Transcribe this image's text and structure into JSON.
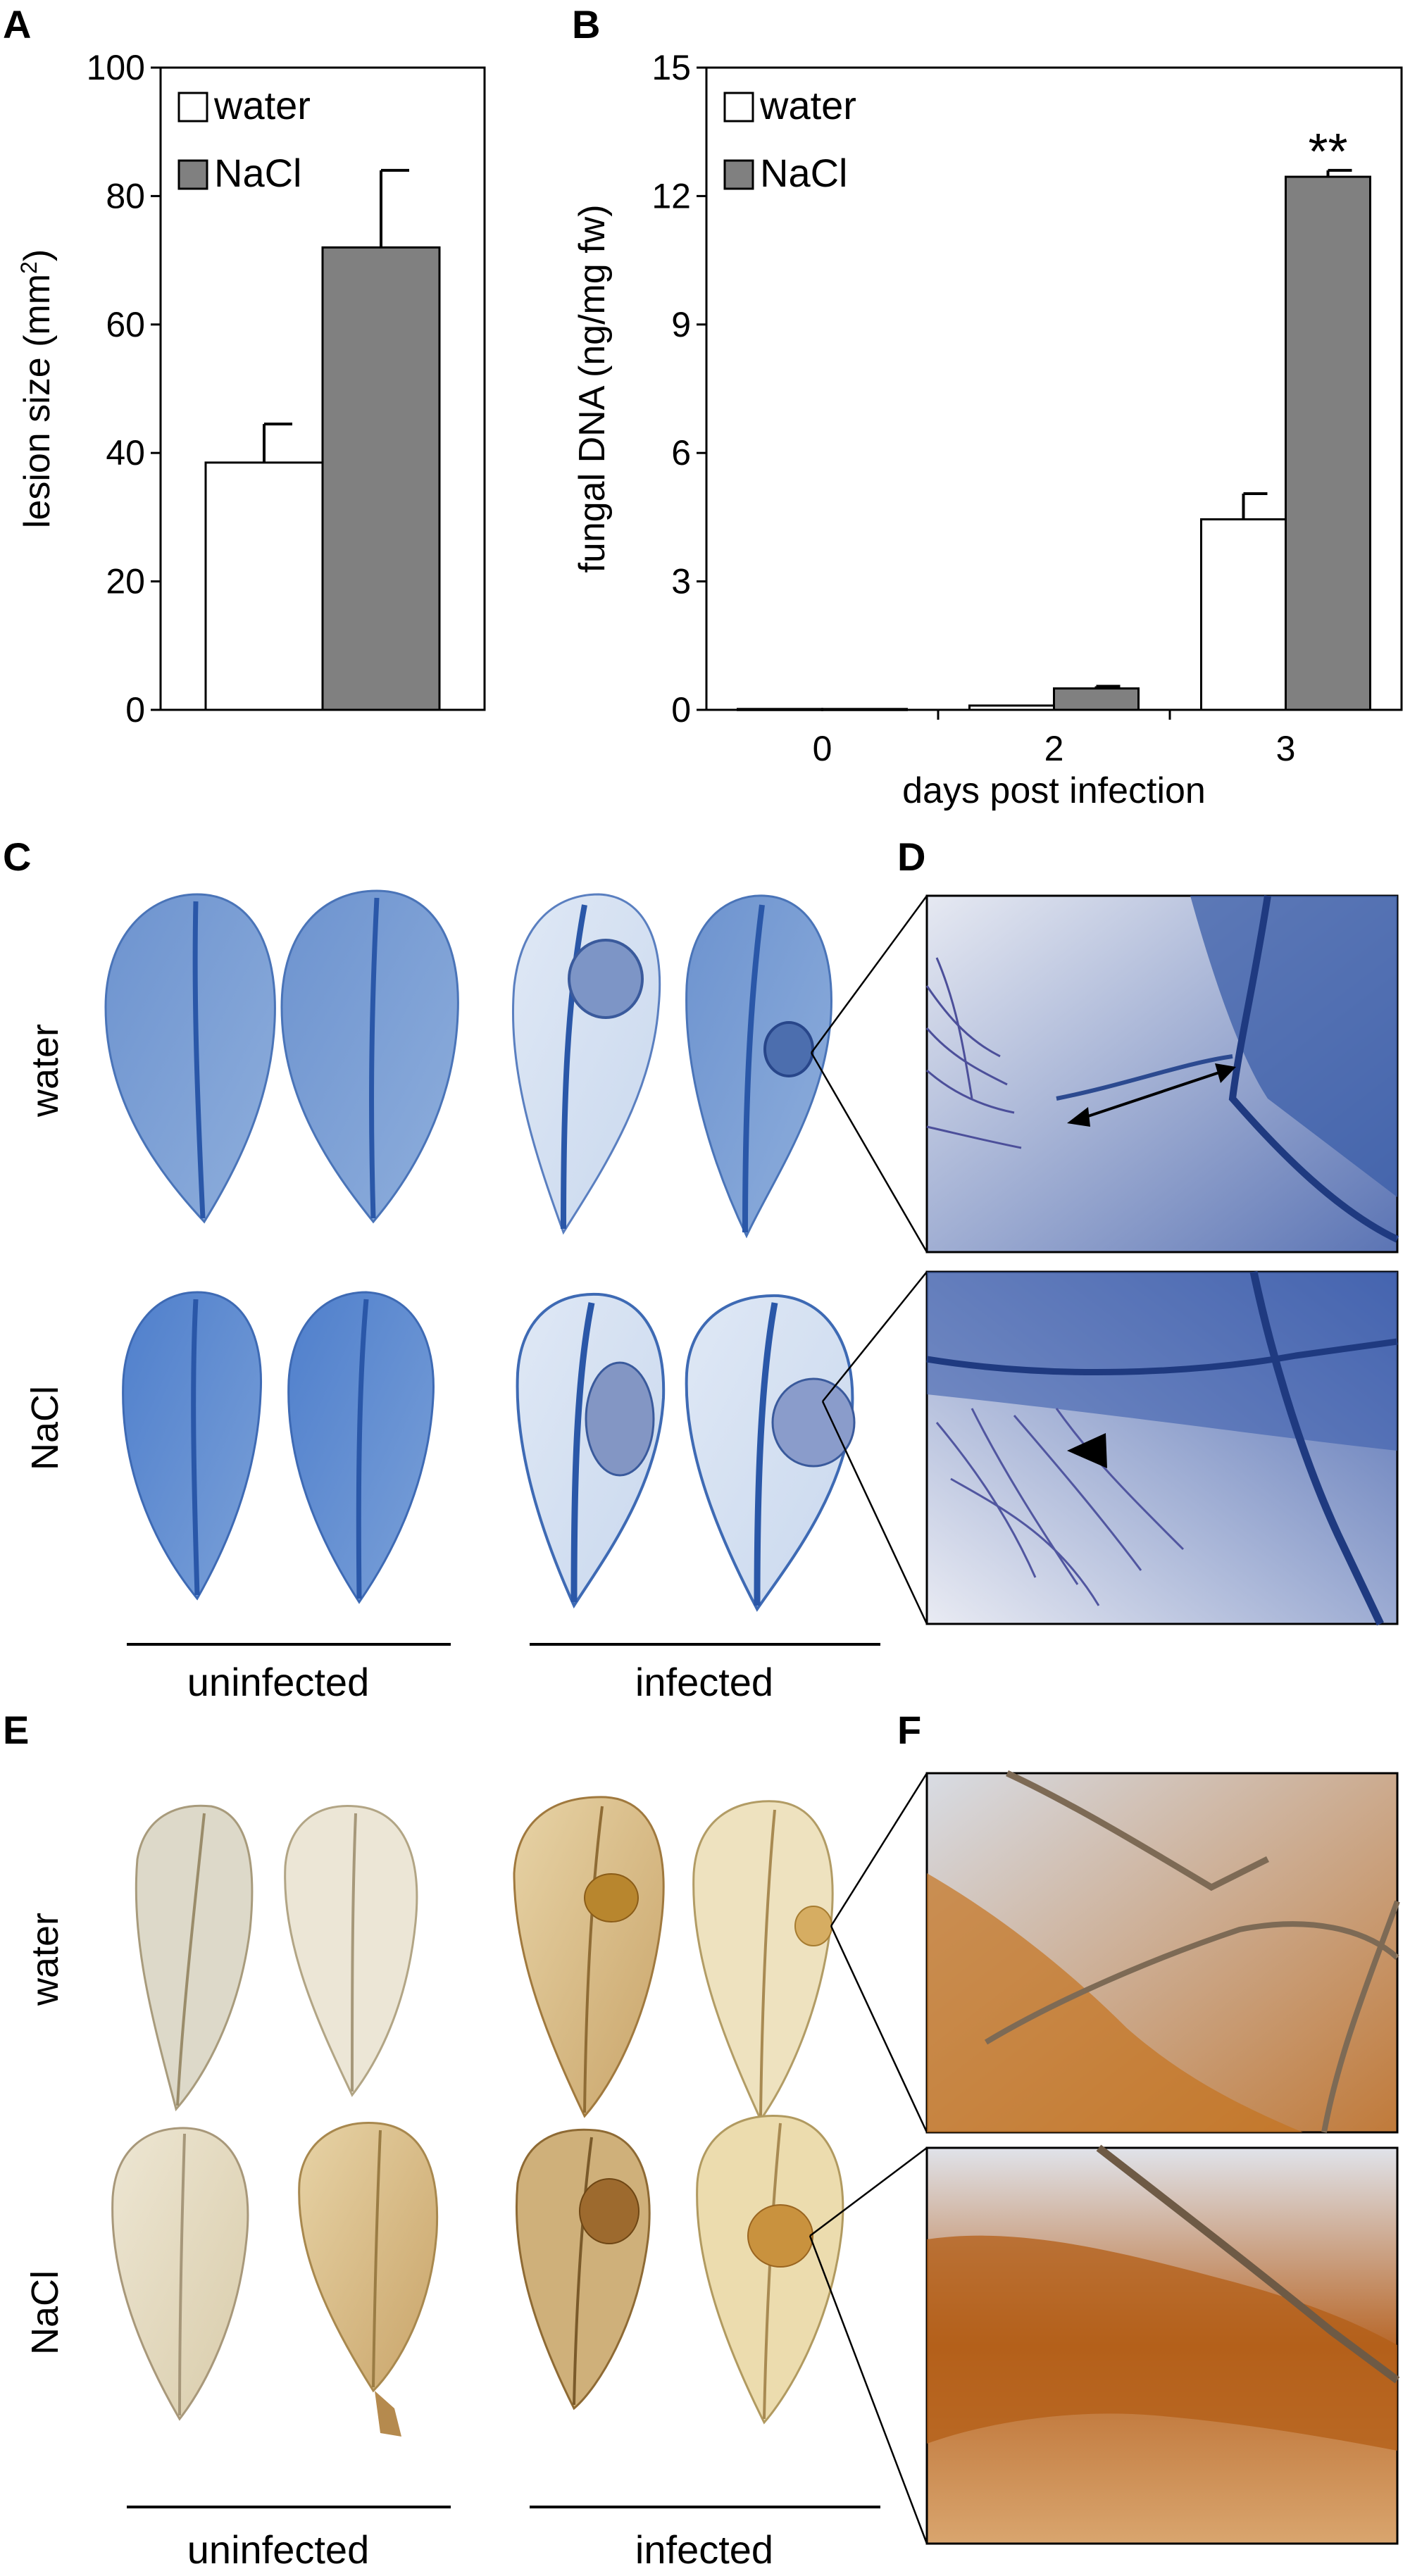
{
  "panel_letters": {
    "a": "A",
    "b": "B",
    "c": "C",
    "d": "D",
    "e": "E",
    "f": "F"
  },
  "chart_data": [
    {
      "panel": "A",
      "type": "bar",
      "ylabel": "lesion size (mm²)",
      "ylabel_main": "lesion size (mm",
      "ylabel_sup": "2",
      "ylabel_close": ")",
      "ylim": [
        0,
        100
      ],
      "yticks": [
        "0",
        "20",
        "40",
        "60",
        "80",
        "100"
      ],
      "legend": [
        "water",
        "NaCl"
      ],
      "series": [
        {
          "name": "water",
          "color": "#ffffff",
          "values": [
            38.5
          ],
          "errors": [
            6
          ]
        },
        {
          "name": "NaCl",
          "color": "#808080",
          "values": [
            72
          ],
          "errors": [
            12
          ]
        }
      ],
      "annotations": [
        "",
        "*"
      ]
    },
    {
      "panel": "B",
      "type": "bar",
      "xlabel": "days post infection",
      "ylabel": "fungal DNA (ng/mg fw)",
      "ylim": [
        0,
        15
      ],
      "yticks": [
        "0",
        "3",
        "6",
        "9",
        "12",
        "15"
      ],
      "categories": [
        "0",
        "2",
        "3"
      ],
      "legend": [
        "water",
        "NaCl"
      ],
      "series": [
        {
          "name": "water",
          "color": "#ffffff",
          "values": [
            0.02,
            0.1,
            4.45
          ],
          "errors": [
            0,
            0,
            0.6
          ]
        },
        {
          "name": "NaCl",
          "color": "#808080",
          "values": [
            0.02,
            0.5,
            12.45
          ],
          "errors": [
            0,
            0.05,
            0.15
          ]
        }
      ],
      "annotations": [
        "",
        "",
        "**"
      ]
    }
  ],
  "image_panels": {
    "C": {
      "rows": [
        "water",
        "NaCl"
      ],
      "groups": [
        "uninfected",
        "infected"
      ],
      "stain": "#3f6fb3"
    },
    "D": {
      "stain": "#3f6fb3"
    },
    "E": {
      "rows": [
        "water",
        "NaCl"
      ],
      "groups": [
        "uninfected",
        "infected"
      ],
      "stain": "#b77a2c"
    },
    "F": {
      "stain": "#b0621a"
    }
  }
}
